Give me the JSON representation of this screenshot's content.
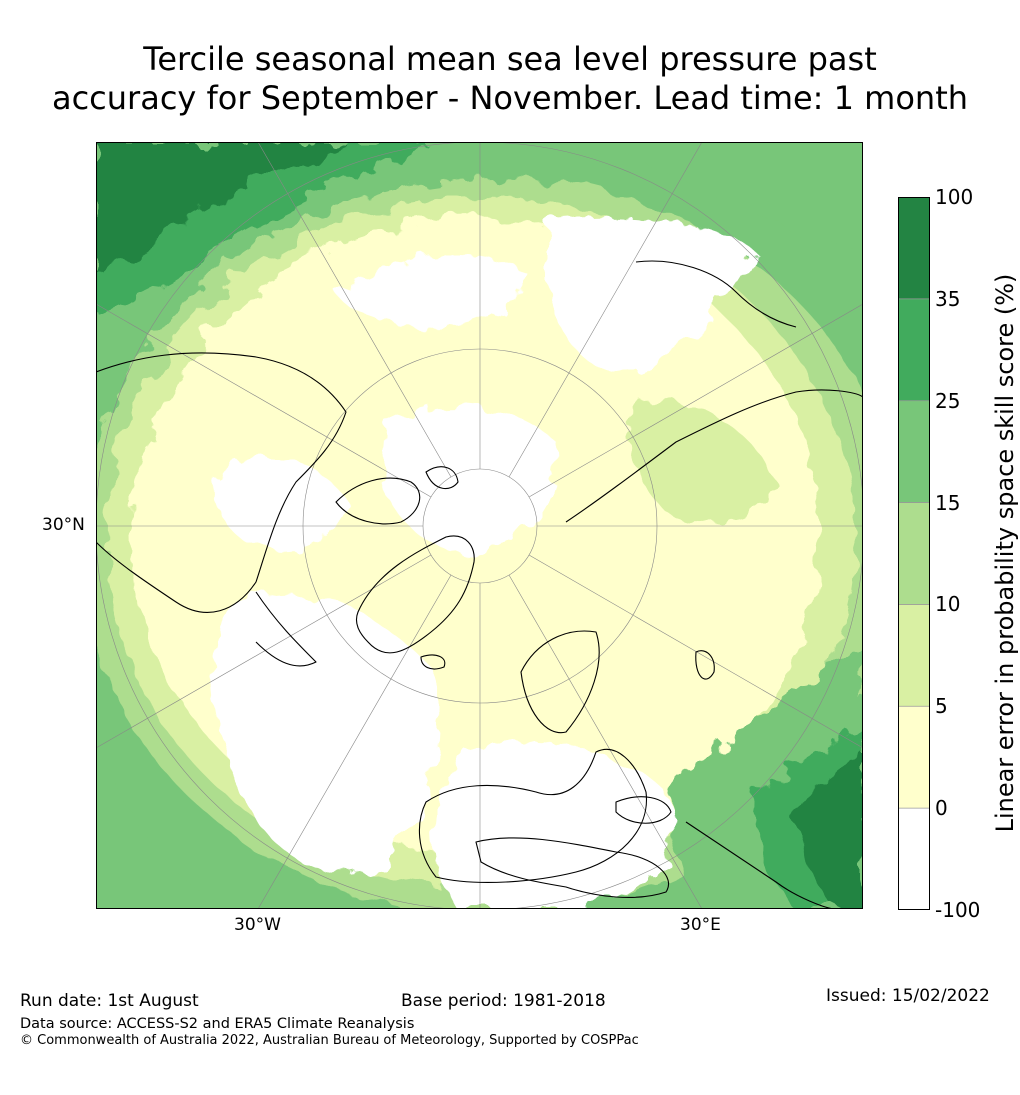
{
  "title": {
    "line1": "Tercile seasonal mean sea level pressure past",
    "line2": "accuracy for September - November. Lead time: 1 month"
  },
  "map": {
    "projection": "north-polar-stereographic",
    "graticule_labels": {
      "lat": "30°N",
      "lon_left": "30°W",
      "lon_right": "30°E"
    }
  },
  "colorbar": {
    "label": "Linear error in probability space skill score (%)",
    "levels": [
      "-100",
      "0",
      "5",
      "10",
      "15",
      "25",
      "35",
      "100"
    ],
    "colors": [
      "#ffffff",
      "#ffffcc",
      "#d9f0a3",
      "#addd8e",
      "#78c679",
      "#41ab5d",
      "#238443"
    ]
  },
  "footer": {
    "run_date": "Run date: 1st August",
    "base_period": "Base period: 1981-2018",
    "issued": "Issued: 15/02/2022",
    "data_source": "Data source: ACCESS-S2 and ERA5 Climate Reanalysis",
    "copyright": "© Commonwealth of Australia 2022, Australian Bureau of Meteorology, Supported by COSPPac"
  }
}
